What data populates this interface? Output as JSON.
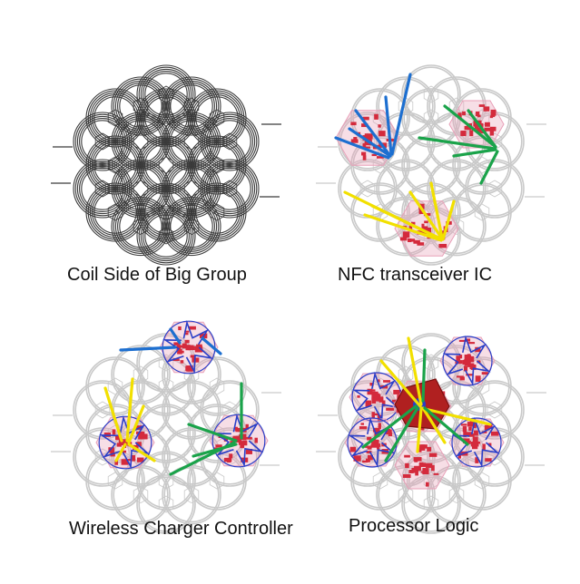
{
  "figure": {
    "panels": [
      {
        "id": "coil",
        "caption": "Coil Side of Big Group"
      },
      {
        "id": "nfc",
        "caption": "NFC transceiver IC"
      },
      {
        "id": "wireless",
        "caption": "Wireless Charger Controller"
      },
      {
        "id": "processor",
        "caption": "Processor Logic"
      }
    ]
  },
  "colors": {
    "coil_dark": "#3a3a3a",
    "coil_light": "#c9c9c9",
    "pcb_red": "#d42a3c",
    "pcb_pink": "#e8a0b8",
    "pcb_blue": "#2a3fc8",
    "arrow_blue": "#1d6fd0",
    "arrow_green": "#1aa34a",
    "arrow_yellow": "#f2e000",
    "center_board": "#b02020"
  }
}
